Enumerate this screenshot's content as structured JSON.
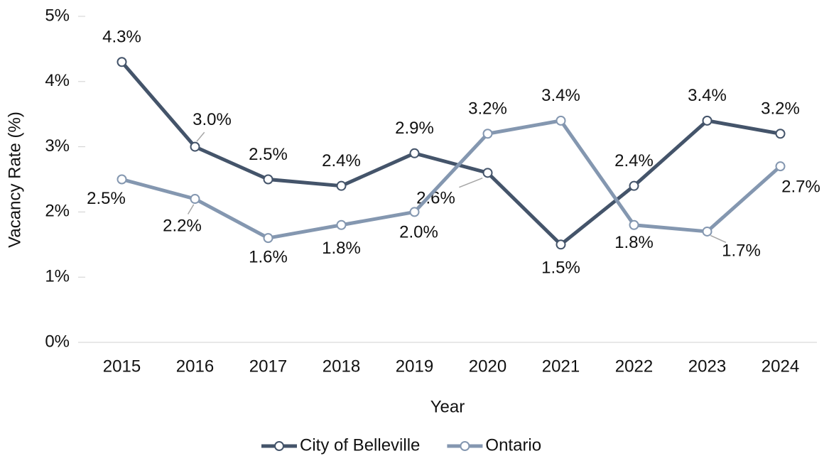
{
  "chart_data": {
    "type": "line",
    "x_label": "Year",
    "y_label": "Vacancy Rate (%)",
    "categories": [
      "2015",
      "2016",
      "2017",
      "2018",
      "2019",
      "2020",
      "2021",
      "2022",
      "2023",
      "2024"
    ],
    "series": [
      {
        "name": "City of Belleville",
        "color": "#44546a",
        "values": [
          4.3,
          3.0,
          2.5,
          2.4,
          2.9,
          2.6,
          1.5,
          2.4,
          3.4,
          3.2
        ],
        "value_labels": [
          "4.3%",
          "3.0%",
          "2.5%",
          "2.4%",
          "2.9%",
          "2.6%",
          "1.5%",
          "2.4%",
          "3.4%",
          "3.2%"
        ]
      },
      {
        "name": "Ontario",
        "color": "#8497b0",
        "values": [
          2.5,
          2.2,
          1.6,
          1.8,
          2.0,
          3.2,
          3.4,
          1.8,
          1.7,
          2.7
        ],
        "value_labels": [
          "2.5%",
          "2.2%",
          "1.6%",
          "1.8%",
          "2.0%",
          "3.2%",
          "3.4%",
          "1.8%",
          "1.7%",
          "2.7%"
        ]
      }
    ],
    "ylim": [
      0,
      5
    ],
    "yticks": [
      {
        "value": 0,
        "label": "0%"
      },
      {
        "value": 1,
        "label": "1%"
      },
      {
        "value": 2,
        "label": "2%"
      },
      {
        "value": 3,
        "label": "3%"
      },
      {
        "value": 4,
        "label": "4%"
      },
      {
        "value": 5,
        "label": "5%"
      }
    ],
    "grid": false,
    "legend": "bottom"
  }
}
